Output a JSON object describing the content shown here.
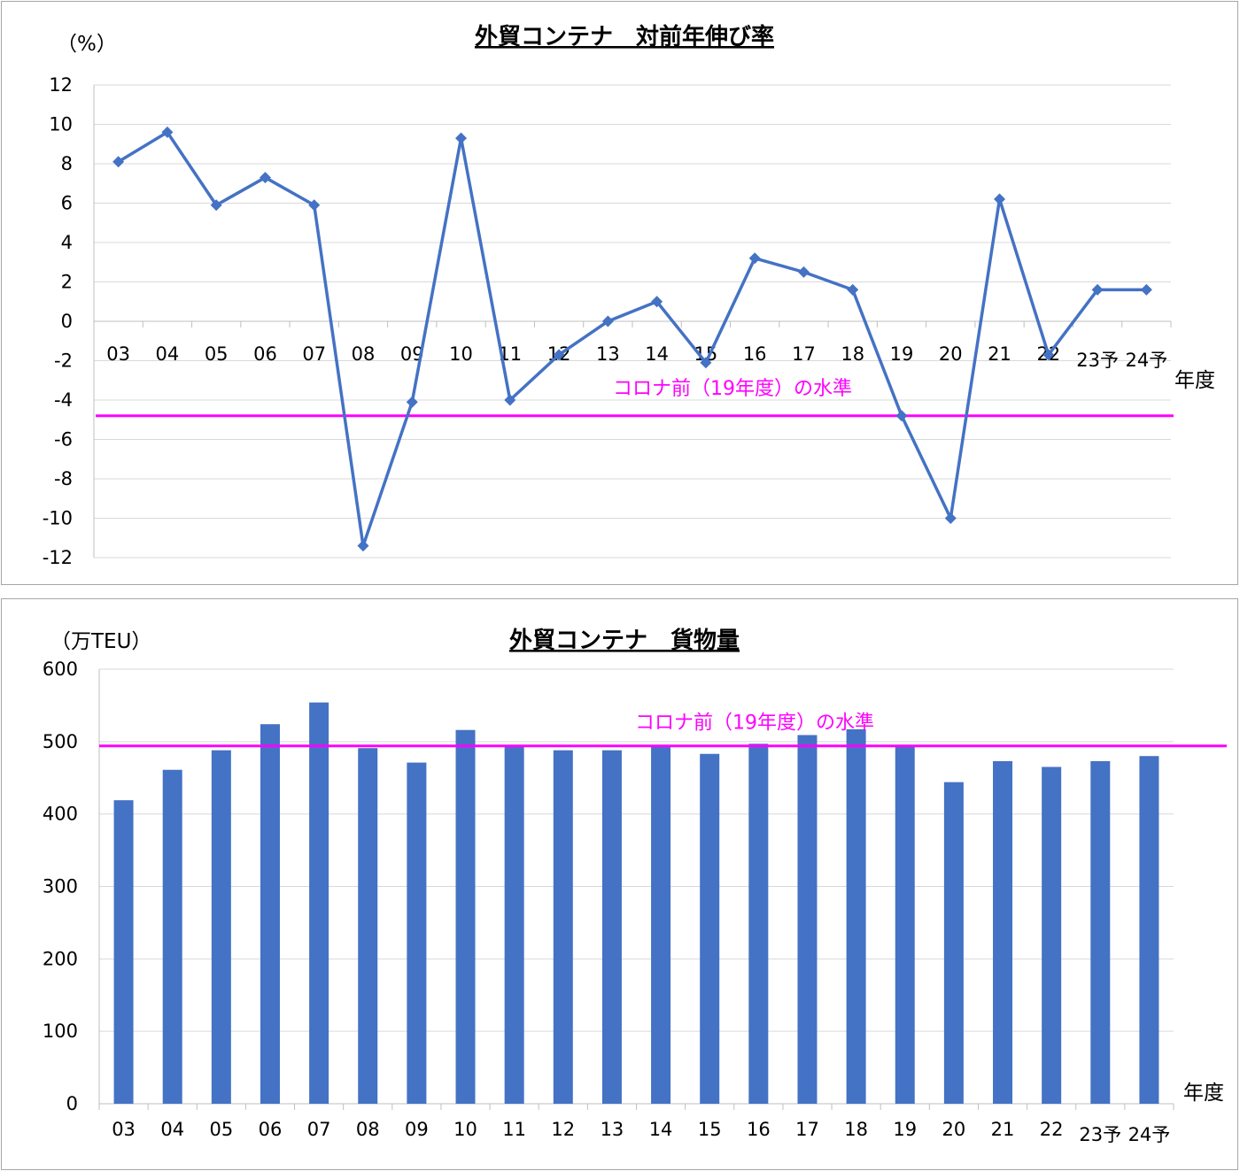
{
  "colors": {
    "series": "#4472c4",
    "reference": "#ff00ff",
    "grid": "#d9d9d9",
    "axis": "#bfbfbf"
  },
  "chart_data": [
    {
      "type": "line",
      "title": "外貿コンテナ　対前年伸び率",
      "ylabel": "（%）",
      "xlabel": "年度",
      "categories": [
        "03",
        "04",
        "05",
        "06",
        "07",
        "08",
        "09",
        "10",
        "11",
        "12",
        "13",
        "14",
        "15",
        "16",
        "17",
        "18",
        "19",
        "20",
        "21",
        "22",
        "23予",
        "24予"
      ],
      "values": [
        8.1,
        9.6,
        5.9,
        7.3,
        5.9,
        -11.4,
        -4.1,
        9.3,
        -4.0,
        -1.7,
        0.0,
        1.0,
        -2.1,
        3.2,
        2.5,
        1.6,
        -4.8,
        -10.0,
        6.2,
        -1.7,
        1.6,
        1.6
      ],
      "ylim": [
        -12,
        12
      ],
      "yticks": [
        12,
        10,
        8,
        6,
        4,
        2,
        0,
        -2,
        -4,
        -6,
        -8,
        -10,
        -12
      ],
      "grid": true,
      "reference_line": {
        "value": -4.8,
        "label": "コロナ前（19年度）の水準"
      }
    },
    {
      "type": "bar",
      "title": "外貿コンテナ　貨物量",
      "ylabel": "（万TEU）",
      "xlabel": "年度",
      "categories": [
        "03",
        "04",
        "05",
        "06",
        "07",
        "08",
        "09",
        "10",
        "11",
        "12",
        "13",
        "14",
        "15",
        "16",
        "17",
        "18",
        "19",
        "20",
        "21",
        "22",
        "23予",
        "24予"
      ],
      "values": [
        419,
        461,
        488,
        524,
        554,
        491,
        471,
        516,
        495,
        488,
        488,
        494,
        483,
        497,
        509,
        517,
        494,
        444,
        473,
        465,
        473,
        480
      ],
      "ylim": [
        0,
        600
      ],
      "yticks": [
        600,
        500,
        400,
        300,
        200,
        100,
        0
      ],
      "grid": true,
      "reference_line": {
        "value": 494,
        "label": "コロナ前（19年度）の水準"
      }
    }
  ]
}
